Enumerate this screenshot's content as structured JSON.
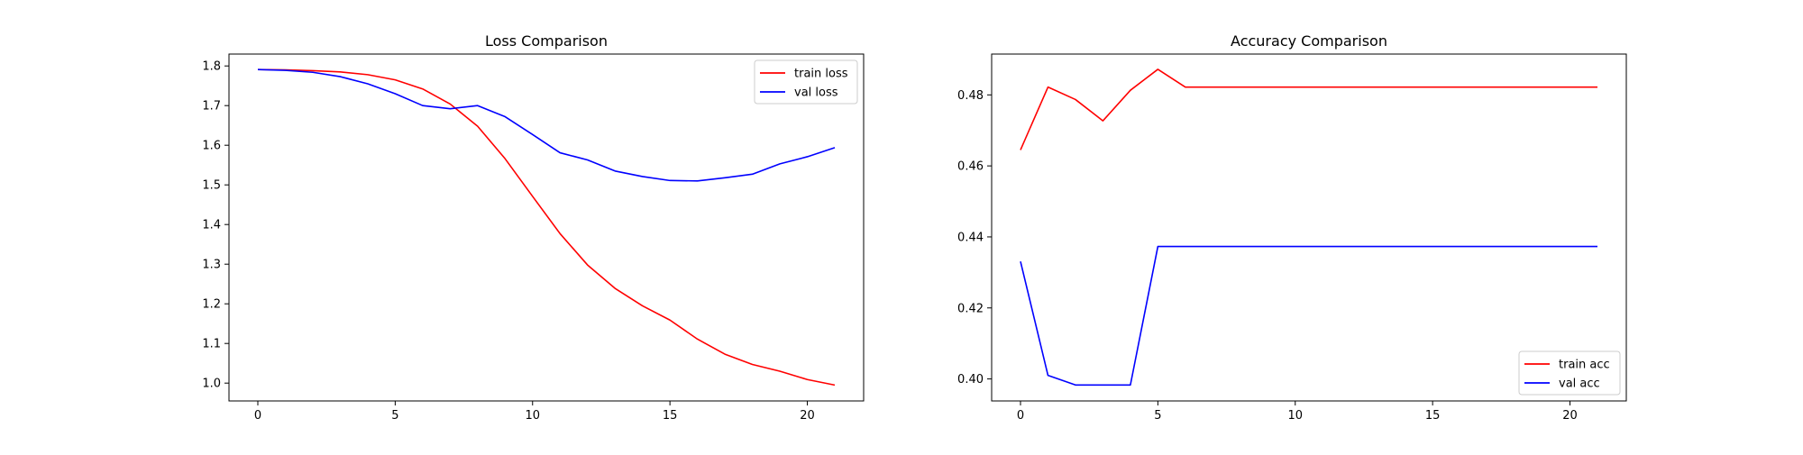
{
  "chart_data": [
    {
      "type": "line",
      "title": "Loss Comparison",
      "xlabel": "",
      "ylabel": "",
      "xlim": [
        -1.05,
        22.05
      ],
      "ylim": [
        0.955,
        1.83
      ],
      "xticks": [
        0,
        5,
        10,
        15,
        20
      ],
      "yticks": [
        1.0,
        1.1,
        1.2,
        1.3,
        1.4,
        1.5,
        1.6,
        1.7,
        1.8
      ],
      "ytick_decimals": 1,
      "grid": false,
      "legend_position": "top-right",
      "x": [
        0,
        1,
        2,
        3,
        4,
        5,
        6,
        7,
        8,
        9,
        10,
        11,
        12,
        13,
        14,
        15,
        16,
        17,
        18,
        19,
        20,
        21
      ],
      "series": [
        {
          "name": "train loss",
          "color": "#ff0000",
          "values": [
            1.791,
            1.79,
            1.788,
            1.785,
            1.778,
            1.765,
            1.742,
            1.704,
            1.648,
            1.566,
            1.471,
            1.377,
            1.298,
            1.239,
            1.195,
            1.159,
            1.111,
            1.073,
            1.047,
            1.03,
            1.009,
            0.995
          ]
        },
        {
          "name": "val loss",
          "color": "#0000ff",
          "values": [
            1.791,
            1.789,
            1.784,
            1.773,
            1.755,
            1.73,
            1.7,
            1.692,
            1.7,
            1.672,
            1.627,
            1.581,
            1.563,
            1.535,
            1.521,
            1.511,
            1.51,
            1.518,
            1.527,
            1.553,
            1.571,
            1.594
          ]
        }
      ]
    },
    {
      "type": "line",
      "title": "Accuracy Comparison",
      "xlabel": "",
      "ylabel": "",
      "xlim": [
        -1.05,
        22.05
      ],
      "ylim": [
        0.3938,
        0.4915
      ],
      "xticks": [
        0,
        5,
        10,
        15,
        20
      ],
      "yticks": [
        0.4,
        0.42,
        0.44,
        0.46,
        0.48
      ],
      "ytick_decimals": 2,
      "grid": false,
      "legend_position": "bottom-right",
      "x": [
        0,
        1,
        2,
        3,
        4,
        5,
        6,
        7,
        8,
        9,
        10,
        11,
        12,
        13,
        14,
        15,
        16,
        17,
        18,
        19,
        20,
        21
      ],
      "series": [
        {
          "name": "train acc",
          "color": "#ff0000",
          "values": [
            0.4645,
            0.4822,
            0.4787,
            0.4727,
            0.4813,
            0.4872,
            0.4822,
            0.4822,
            0.4822,
            0.4822,
            0.4822,
            0.4822,
            0.4822,
            0.4822,
            0.4822,
            0.4822,
            0.4822,
            0.4822,
            0.4822,
            0.4822,
            0.4822,
            0.4822
          ]
        },
        {
          "name": "val acc",
          "color": "#0000ff",
          "values": [
            0.4331,
            0.401,
            0.3983,
            0.3983,
            0.3983,
            0.4373,
            0.4373,
            0.4373,
            0.4373,
            0.4373,
            0.4373,
            0.4373,
            0.4373,
            0.4373,
            0.4373,
            0.4373,
            0.4373,
            0.4373,
            0.4373,
            0.4373,
            0.4373,
            0.4373
          ]
        }
      ]
    }
  ]
}
